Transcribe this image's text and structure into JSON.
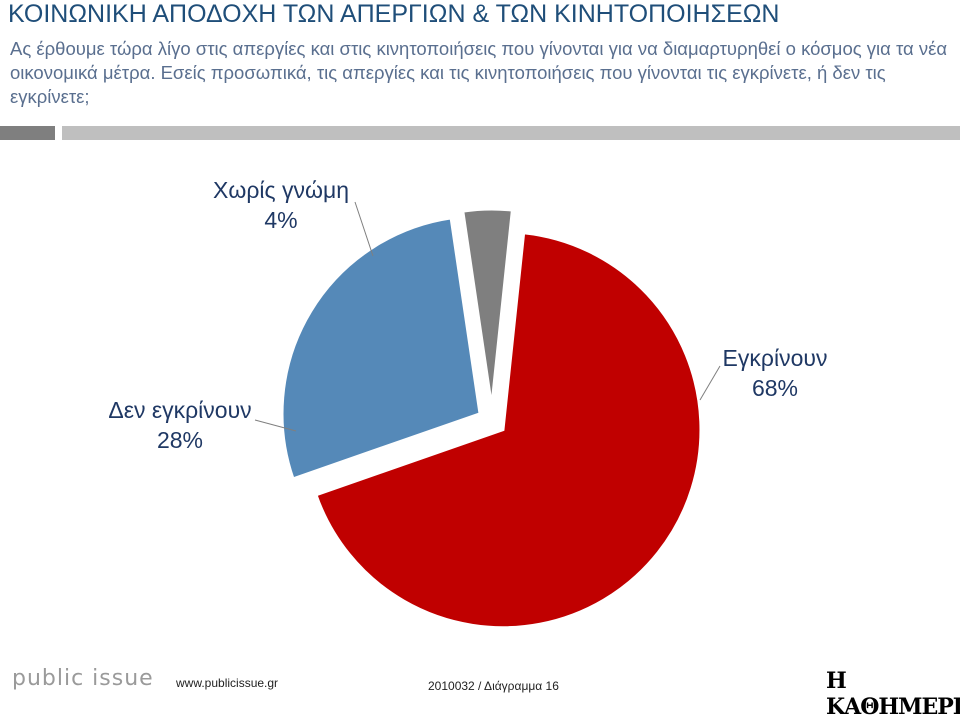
{
  "header": {
    "title": "ΚΟΙΝΩΝΙΚΗ ΑΠΟΔΟΧΗ ΤΩΝ ΑΠΕΡΓΙΩΝ & ΤΩΝ ΚΙΝΗΤΟΠΟΙΗΣΕΩΝ",
    "question": "Ας έρθουμε τώρα λίγο στις απεργίες και στις κινητοποιήσεις που γίνονται για να διαμαρτυρηθεί ο κόσμος για τα νέα οικονομικά μέτρα. Εσείς προσωπικά, τις απεργίες και τις κινητοποιήσεις που γίνονται τις εγκρίνετε, ή δεν τις εγκρίνετε;"
  },
  "chart_data": {
    "type": "pie",
    "slices": [
      {
        "label": "Εγκρίνουν",
        "value": 68,
        "value_label": "68%",
        "color": "#c00000"
      },
      {
        "label": "Δεν εγκρίνουν",
        "value": 28,
        "value_label": "28%",
        "color": "#5589b8"
      },
      {
        "label": "Χωρίς γνώμη",
        "value": 4,
        "value_label": "4%",
        "color": "#7f7f7f"
      }
    ],
    "exploded": true,
    "legend": "none",
    "data_labels": "outside"
  },
  "footer": {
    "logo_text": "public issue",
    "url": "www.publicissue.gr",
    "code": "2010032 / Διάγραμμα 16",
    "brand": "Η ΚΑΘΗΜΕΡΙΝΗ"
  }
}
